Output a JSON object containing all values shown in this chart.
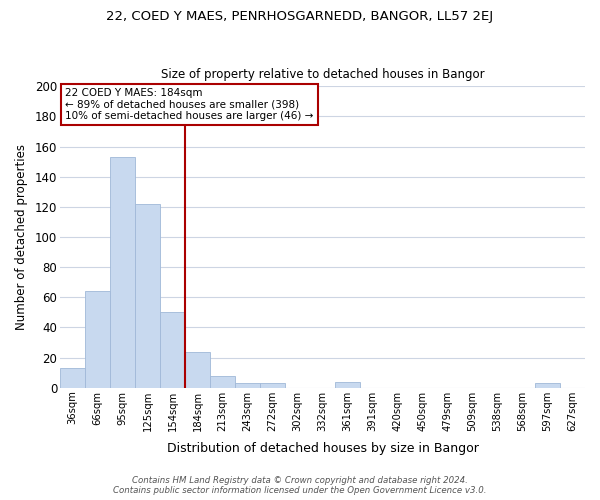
{
  "title1": "22, COED Y MAES, PENRHOSGARNEDD, BANGOR, LL57 2EJ",
  "title2": "Size of property relative to detached houses in Bangor",
  "xlabel": "Distribution of detached houses by size in Bangor",
  "ylabel": "Number of detached properties",
  "bar_labels": [
    "36sqm",
    "66sqm",
    "95sqm",
    "125sqm",
    "154sqm",
    "184sqm",
    "213sqm",
    "243sqm",
    "272sqm",
    "302sqm",
    "332sqm",
    "361sqm",
    "391sqm",
    "420sqm",
    "450sqm",
    "479sqm",
    "509sqm",
    "538sqm",
    "568sqm",
    "597sqm",
    "627sqm"
  ],
  "bar_values": [
    13,
    64,
    153,
    122,
    50,
    24,
    8,
    3,
    3,
    0,
    0,
    4,
    0,
    0,
    0,
    0,
    0,
    0,
    0,
    3,
    0
  ],
  "bar_color": "#c8d9ef",
  "bar_edge_color": "#a0b8d8",
  "vline_color": "#aa0000",
  "annotation_title": "22 COED Y MAES: 184sqm",
  "annotation_line1": "← 89% of detached houses are smaller (398)",
  "annotation_line2": "10% of semi-detached houses are larger (46) →",
  "annotation_box_color": "#ffffff",
  "annotation_box_edge": "#aa0000",
  "ylim": [
    0,
    200
  ],
  "yticks": [
    0,
    20,
    40,
    60,
    80,
    100,
    120,
    140,
    160,
    180,
    200
  ],
  "footer1": "Contains HM Land Registry data © Crown copyright and database right 2024.",
  "footer2": "Contains public sector information licensed under the Open Government Licence v3.0.",
  "background_color": "#ffffff",
  "grid_color": "#cdd5e3"
}
